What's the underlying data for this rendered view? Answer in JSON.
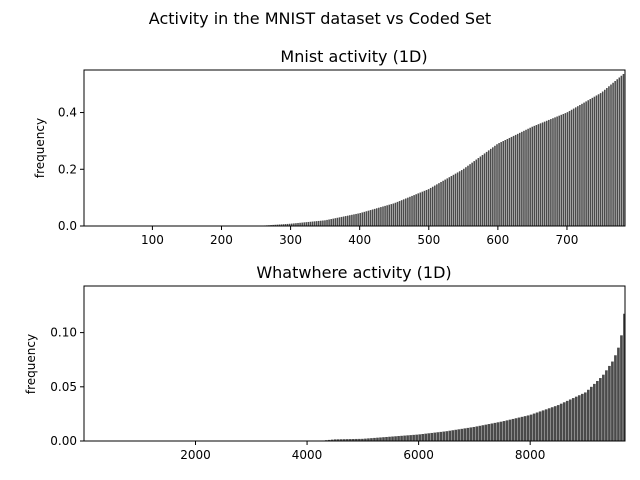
{
  "figure": {
    "suptitle": "Activity in the MNIST dataset vs Coded Set"
  },
  "chart_data": [
    {
      "type": "bar",
      "title": "Mnist activity (1D)",
      "xlabel": "",
      "ylabel": "frequency",
      "xlim": [
        1,
        784
      ],
      "ylim": [
        0,
        0.55
      ],
      "xticks": [
        100,
        200,
        300,
        400,
        500,
        600,
        700
      ],
      "yticks": [
        0.0,
        0.2,
        0.4
      ],
      "ytick_decimals": 1,
      "n_bars": 784,
      "bar_color": "#4a4a4a",
      "sorted_profile": {
        "x": [
          1,
          250,
          270,
          300,
          350,
          400,
          450,
          500,
          550,
          600,
          650,
          700,
          750,
          784
        ],
        "y": [
          0.0,
          0.0,
          0.003,
          0.008,
          0.02,
          0.045,
          0.08,
          0.13,
          0.2,
          0.29,
          0.35,
          0.4,
          0.47,
          0.54
        ]
      }
    },
    {
      "type": "bar",
      "title": "Whatwhere activity (1D)",
      "xlabel": "",
      "ylabel": "frequency",
      "xlim": [
        1,
        9700
      ],
      "ylim": [
        0,
        0.143
      ],
      "xticks": [
        2000,
        4000,
        6000,
        8000
      ],
      "yticks": [
        0.0,
        0.05,
        0.1
      ],
      "ytick_decimals": 2,
      "n_bars": 9700,
      "bar_color": "#4a4a4a",
      "sorted_profile": {
        "x": [
          1,
          4200,
          4500,
          5000,
          5500,
          6000,
          6500,
          7000,
          7500,
          8000,
          8500,
          9000,
          9300,
          9500,
          9600,
          9650,
          9700
        ],
        "y": [
          0.0,
          0.0,
          0.0015,
          0.002,
          0.004,
          0.006,
          0.009,
          0.013,
          0.018,
          0.024,
          0.033,
          0.045,
          0.06,
          0.075,
          0.088,
          0.1,
          0.12
        ]
      }
    }
  ]
}
